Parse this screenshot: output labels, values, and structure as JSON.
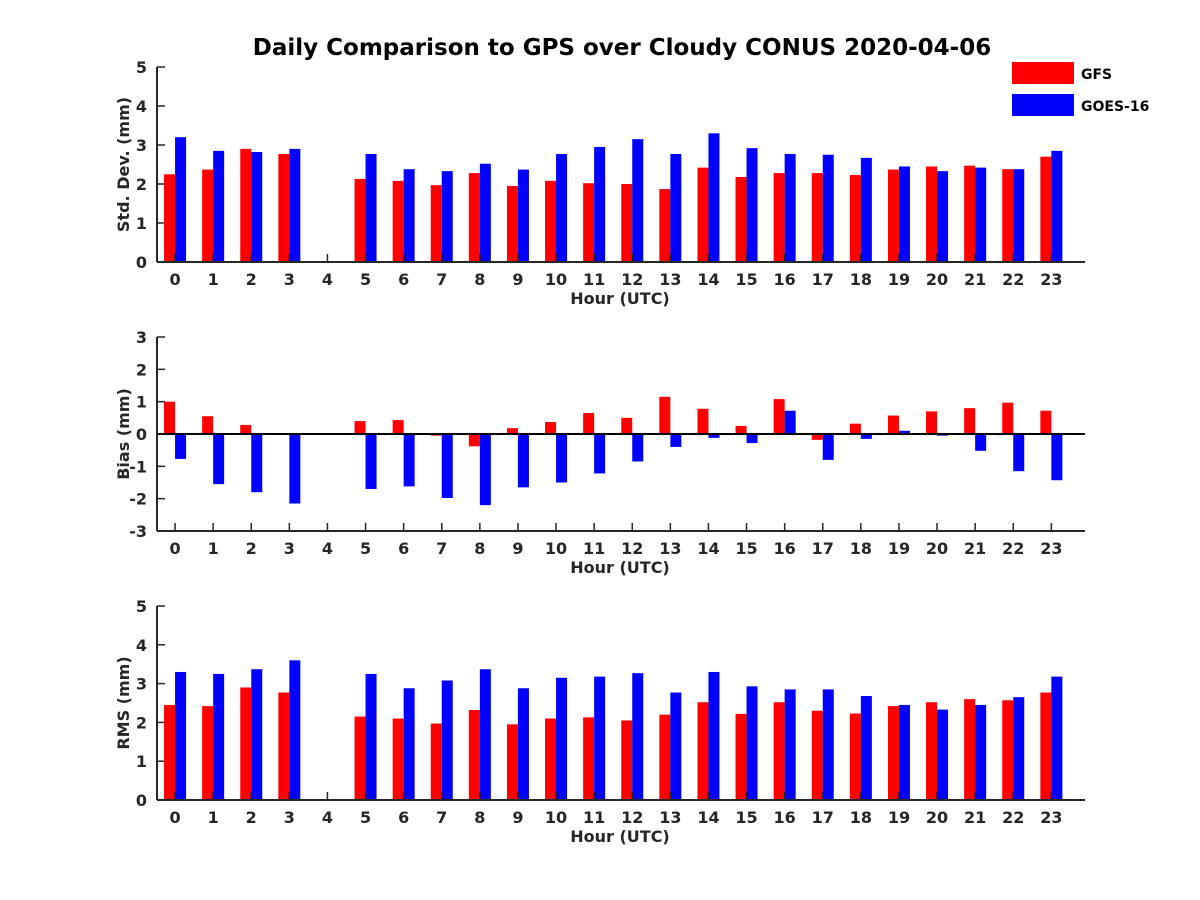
{
  "title": "Daily Comparison to GPS over Cloudy CONUS 2020-04-06",
  "legend": [
    {
      "label": "GFS",
      "color": "#ff0000"
    },
    {
      "label": "GOES-16",
      "color": "#0000ff"
    }
  ],
  "chart_data": [
    {
      "type": "bar",
      "xlabel": "Hour (UTC)",
      "ylabel": "Std. Dev. (mm)",
      "ylim": [
        0,
        5
      ],
      "yticks": [
        0,
        1,
        2,
        3,
        4,
        5
      ],
      "categories": [
        "0",
        "1",
        "2",
        "3",
        "4",
        "5",
        "6",
        "7",
        "8",
        "9",
        "10",
        "11",
        "12",
        "13",
        "14",
        "15",
        "16",
        "17",
        "18",
        "19",
        "20",
        "21",
        "22",
        "23"
      ],
      "series": [
        {
          "name": "GFS",
          "values": [
            2.25,
            2.37,
            2.9,
            2.77,
            null,
            2.13,
            2.08,
            1.97,
            2.28,
            1.95,
            2.08,
            2.02,
            2.0,
            1.87,
            2.42,
            2.18,
            2.28,
            2.28,
            2.23,
            2.37,
            2.45,
            2.47,
            2.38,
            2.7
          ]
        },
        {
          "name": "GOES-16",
          "values": [
            3.2,
            2.85,
            2.82,
            2.9,
            null,
            2.77,
            2.38,
            2.33,
            2.52,
            2.37,
            2.77,
            2.95,
            3.15,
            2.77,
            3.3,
            2.92,
            2.77,
            2.75,
            2.67,
            2.45,
            2.33,
            2.42,
            2.38,
            2.85
          ]
        }
      ]
    },
    {
      "type": "bar",
      "xlabel": "Hour (UTC)",
      "ylabel": "Bias (mm)",
      "ylim": [
        -3,
        3
      ],
      "yticks": [
        -3,
        -2,
        -1,
        0,
        1,
        2,
        3
      ],
      "categories": [
        "0",
        "1",
        "2",
        "3",
        "4",
        "5",
        "6",
        "7",
        "8",
        "9",
        "10",
        "11",
        "12",
        "13",
        "14",
        "15",
        "16",
        "17",
        "18",
        "19",
        "20",
        "21",
        "22",
        "23"
      ],
      "series": [
        {
          "name": "GFS",
          "values": [
            1.0,
            0.55,
            0.28,
            0.0,
            null,
            0.4,
            0.43,
            -0.05,
            -0.38,
            0.18,
            0.37,
            0.65,
            0.5,
            1.15,
            0.78,
            0.25,
            1.08,
            -0.18,
            0.32,
            0.57,
            0.7,
            0.8,
            0.97,
            0.72
          ]
        },
        {
          "name": "GOES-16",
          "values": [
            -0.77,
            -1.55,
            -1.8,
            -2.15,
            null,
            -1.7,
            -1.62,
            -1.98,
            -2.2,
            -1.65,
            -1.5,
            -1.22,
            -0.85,
            -0.4,
            -0.12,
            -0.28,
            0.72,
            -0.8,
            -0.15,
            0.1,
            -0.05,
            -0.52,
            -1.15,
            -1.43
          ]
        }
      ]
    },
    {
      "type": "bar",
      "xlabel": "Hour (UTC)",
      "ylabel": "RMS (mm)",
      "ylim": [
        0,
        5
      ],
      "yticks": [
        0,
        1,
        2,
        3,
        4,
        5
      ],
      "categories": [
        "0",
        "1",
        "2",
        "3",
        "4",
        "5",
        "6",
        "7",
        "8",
        "9",
        "10",
        "11",
        "12",
        "13",
        "14",
        "15",
        "16",
        "17",
        "18",
        "19",
        "20",
        "21",
        "22",
        "23"
      ],
      "series": [
        {
          "name": "GFS",
          "values": [
            2.45,
            2.42,
            2.9,
            2.77,
            null,
            2.15,
            2.1,
            1.97,
            2.32,
            1.95,
            2.1,
            2.13,
            2.05,
            2.2,
            2.52,
            2.22,
            2.52,
            2.3,
            2.23,
            2.42,
            2.52,
            2.6,
            2.57,
            2.77
          ]
        },
        {
          "name": "GOES-16",
          "values": [
            3.3,
            3.25,
            3.37,
            3.6,
            null,
            3.25,
            2.88,
            3.08,
            3.37,
            2.88,
            3.15,
            3.18,
            3.27,
            2.77,
            3.3,
            2.93,
            2.85,
            2.85,
            2.68,
            2.45,
            2.33,
            2.45,
            2.65,
            3.18
          ]
        }
      ]
    }
  ]
}
